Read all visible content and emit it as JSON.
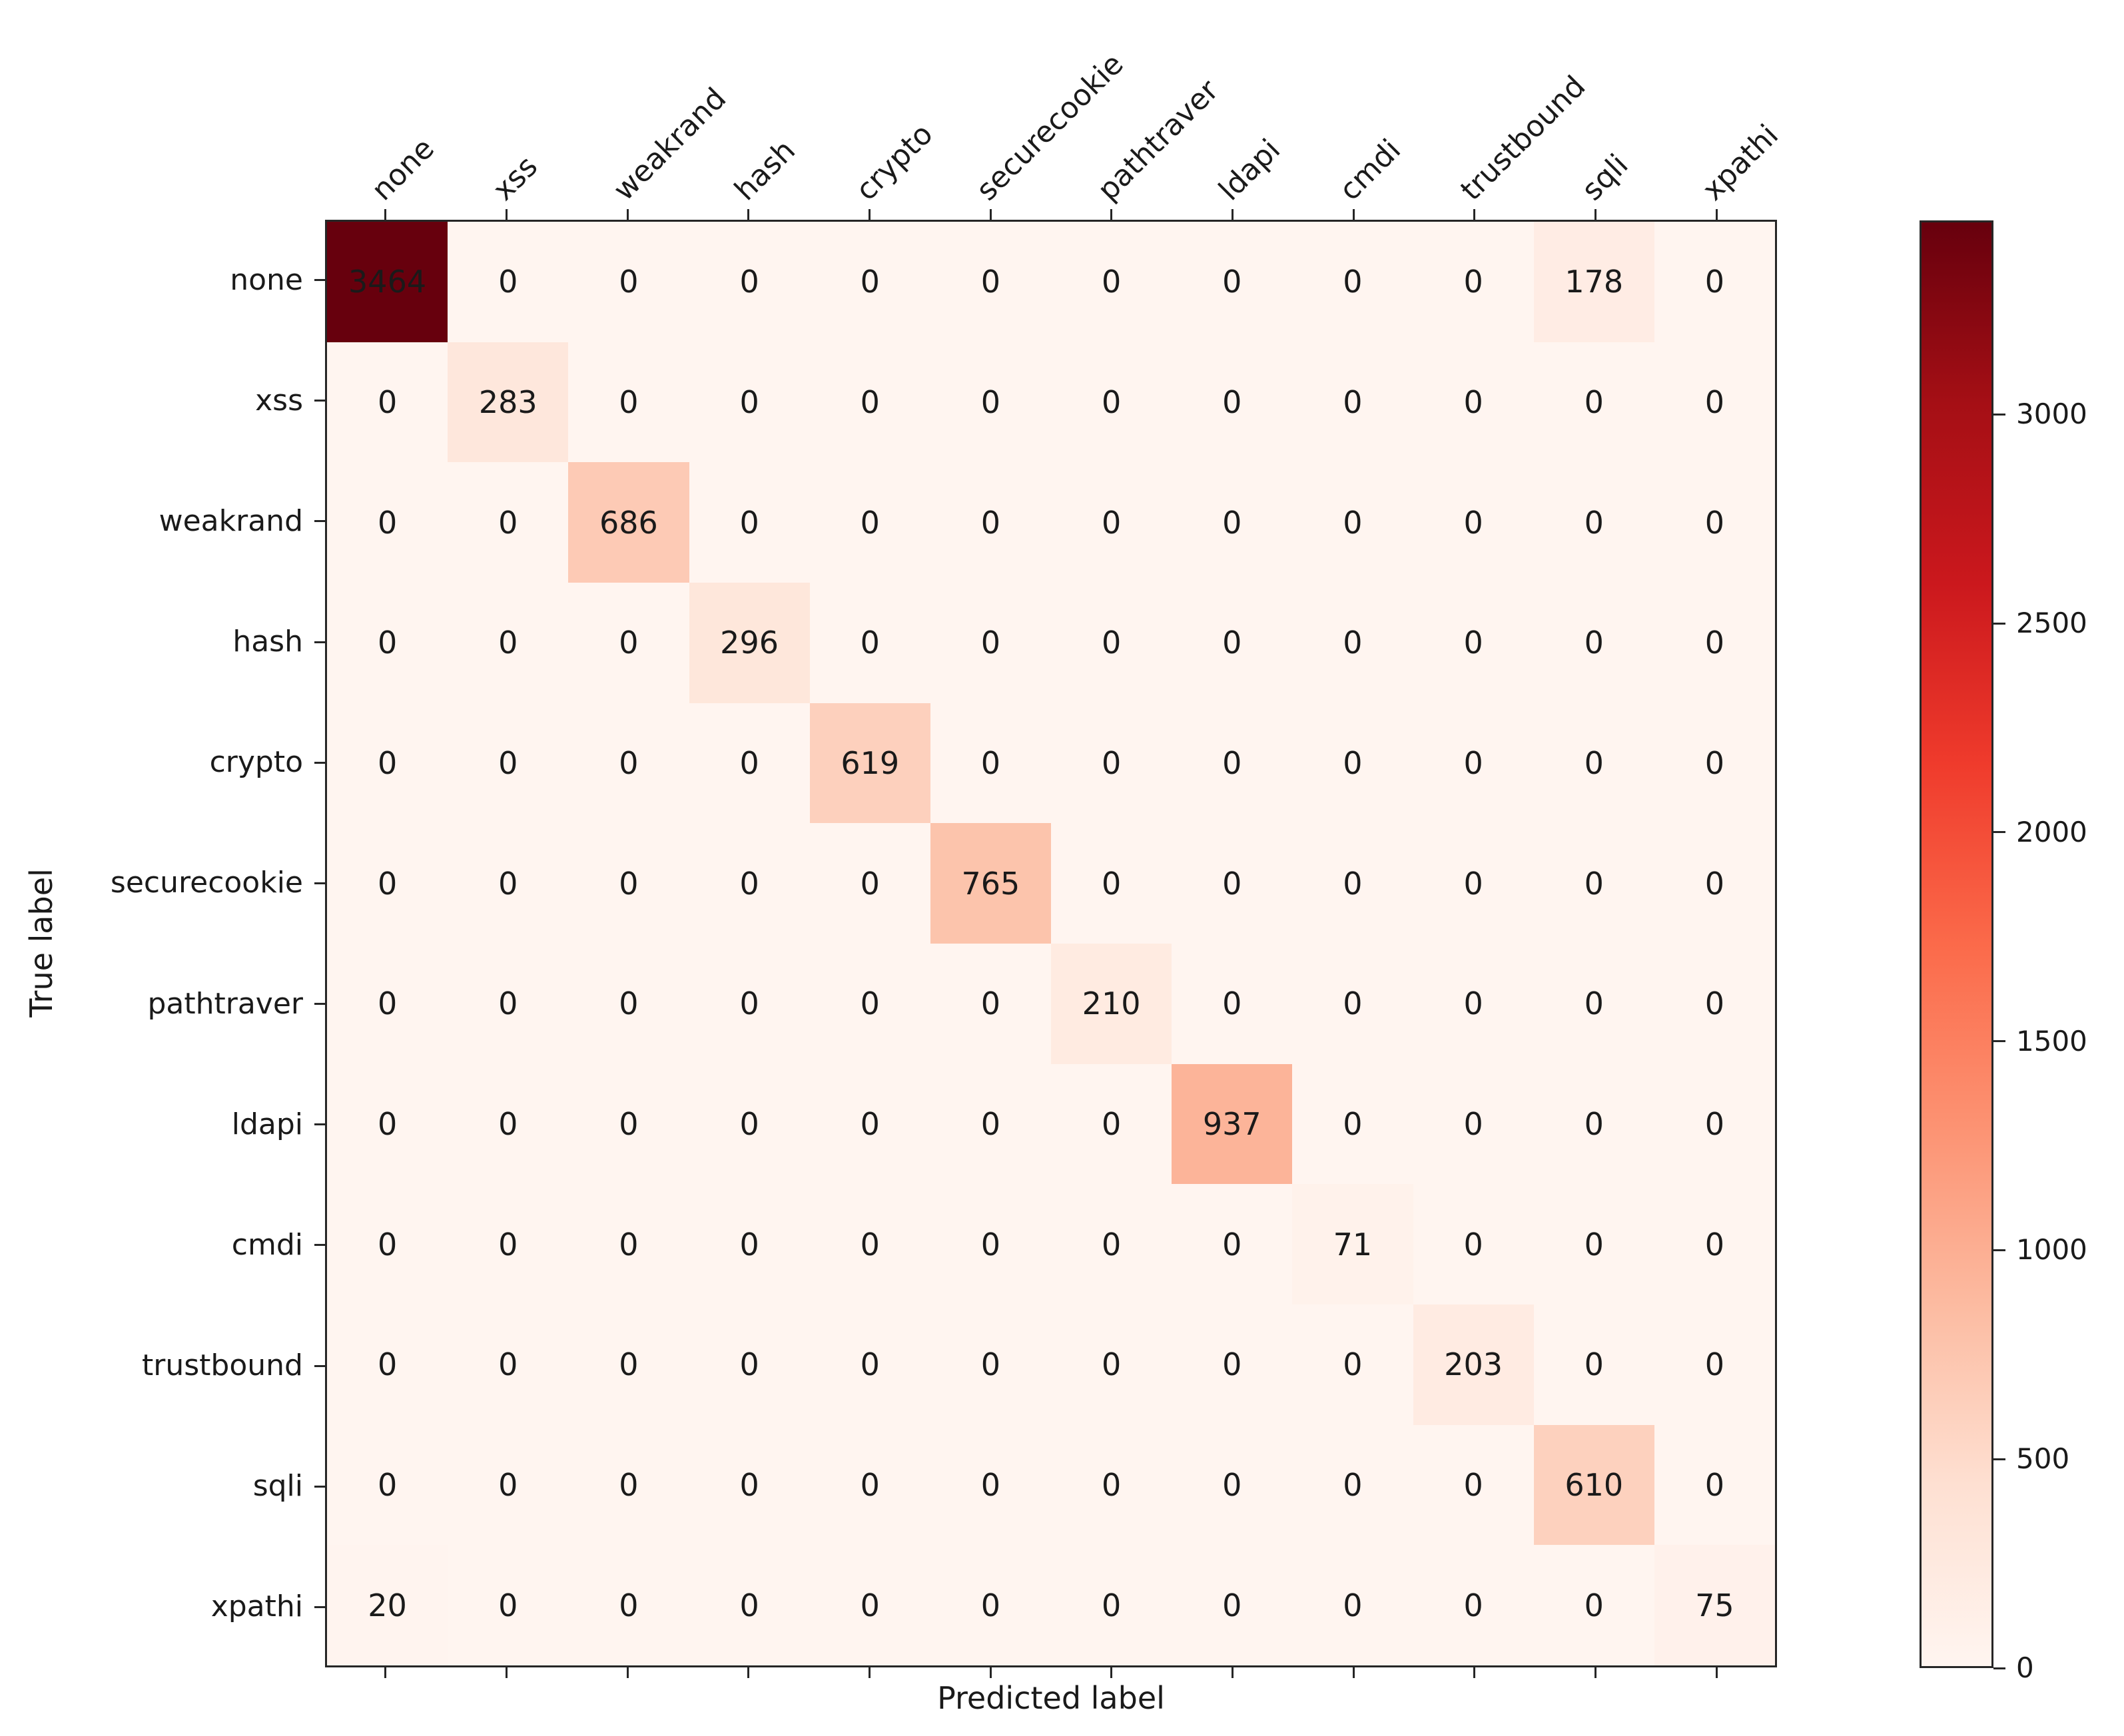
{
  "figure": {
    "background": "#ffffff",
    "text_color": "#1a1a1a",
    "spine_color": "#262626"
  },
  "chart_data": {
    "type": "heatmap",
    "title": "",
    "xlabel": "Predicted label",
    "ylabel": "True label",
    "categories": [
      "none",
      "xss",
      "weakrand",
      "hash",
      "crypto",
      "securecookie",
      "pathtraver",
      "ldapi",
      "cmdi",
      "trustbound",
      "sqli",
      "xpathi"
    ],
    "matrix": [
      [
        3464,
        0,
        0,
        0,
        0,
        0,
        0,
        0,
        0,
        0,
        178,
        0
      ],
      [
        0,
        283,
        0,
        0,
        0,
        0,
        0,
        0,
        0,
        0,
        0,
        0
      ],
      [
        0,
        0,
        686,
        0,
        0,
        0,
        0,
        0,
        0,
        0,
        0,
        0
      ],
      [
        0,
        0,
        0,
        296,
        0,
        0,
        0,
        0,
        0,
        0,
        0,
        0
      ],
      [
        0,
        0,
        0,
        0,
        619,
        0,
        0,
        0,
        0,
        0,
        0,
        0
      ],
      [
        0,
        0,
        0,
        0,
        0,
        765,
        0,
        0,
        0,
        0,
        0,
        0
      ],
      [
        0,
        0,
        0,
        0,
        0,
        0,
        210,
        0,
        0,
        0,
        0,
        0
      ],
      [
        0,
        0,
        0,
        0,
        0,
        0,
        0,
        937,
        0,
        0,
        0,
        0
      ],
      [
        0,
        0,
        0,
        0,
        0,
        0,
        0,
        0,
        71,
        0,
        0,
        0
      ],
      [
        0,
        0,
        0,
        0,
        0,
        0,
        0,
        0,
        0,
        203,
        0,
        0
      ],
      [
        0,
        0,
        0,
        0,
        0,
        0,
        0,
        0,
        0,
        0,
        610,
        0
      ],
      [
        20,
        0,
        0,
        0,
        0,
        0,
        0,
        0,
        0,
        0,
        0,
        75
      ]
    ],
    "vmin": 0,
    "vmax": 3464,
    "colormap": {
      "name": "Reds",
      "stops": [
        "#fff5f0",
        "#fee0d2",
        "#fcbba1",
        "#fc9272",
        "#fb6a4a",
        "#ef3b2c",
        "#cb181d",
        "#a50f15",
        "#67000d"
      ]
    },
    "colorbar_ticks": [
      0,
      500,
      1000,
      1500,
      2000,
      2500,
      3000
    ],
    "legend_position": "right-colorbar",
    "grid": false,
    "x_tick_rotation": 45
  }
}
